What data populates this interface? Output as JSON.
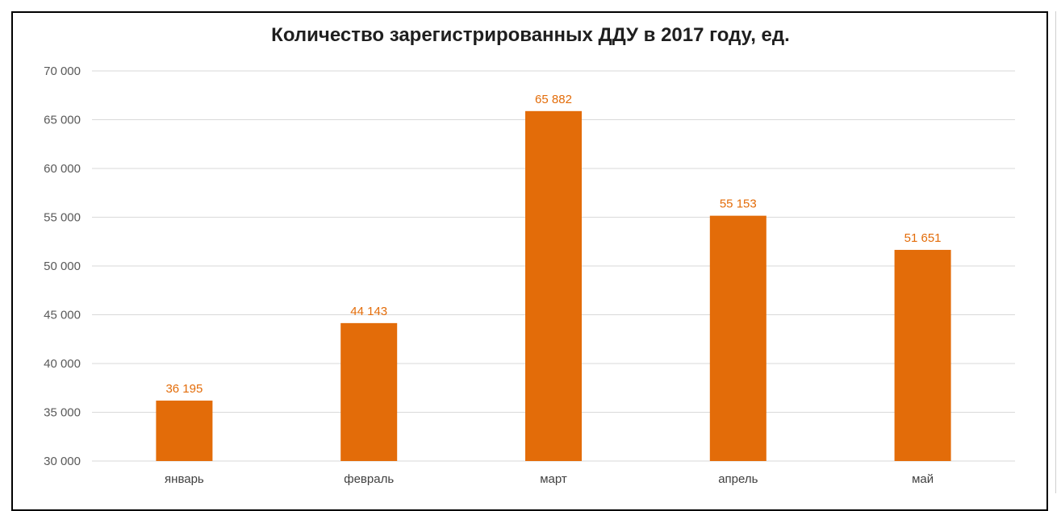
{
  "chart_data": {
    "type": "bar",
    "title": "Количество зарегистрированных ДДУ в 2017 году, ед.",
    "xlabel": "",
    "ylabel": "",
    "categories": [
      "январь",
      "февраль",
      "март",
      "апрель",
      "май"
    ],
    "values": [
      36195,
      44143,
      65882,
      55153,
      51651
    ],
    "value_labels": [
      "36 195",
      "44 143",
      "65 882",
      "55 153",
      "51 651"
    ],
    "ylim": [
      30000,
      70000
    ],
    "yticks": [
      30000,
      35000,
      40000,
      45000,
      50000,
      55000,
      60000,
      65000,
      70000
    ],
    "ytick_labels": [
      "30 000",
      "35 000",
      "40 000",
      "45 000",
      "50 000",
      "55 000",
      "60 000",
      "65 000",
      "70 000"
    ],
    "grid": true,
    "legend": "none",
    "colors": {
      "bar": "#E36C09",
      "label": "#E36C09",
      "grid": "#D9D9D9"
    }
  }
}
